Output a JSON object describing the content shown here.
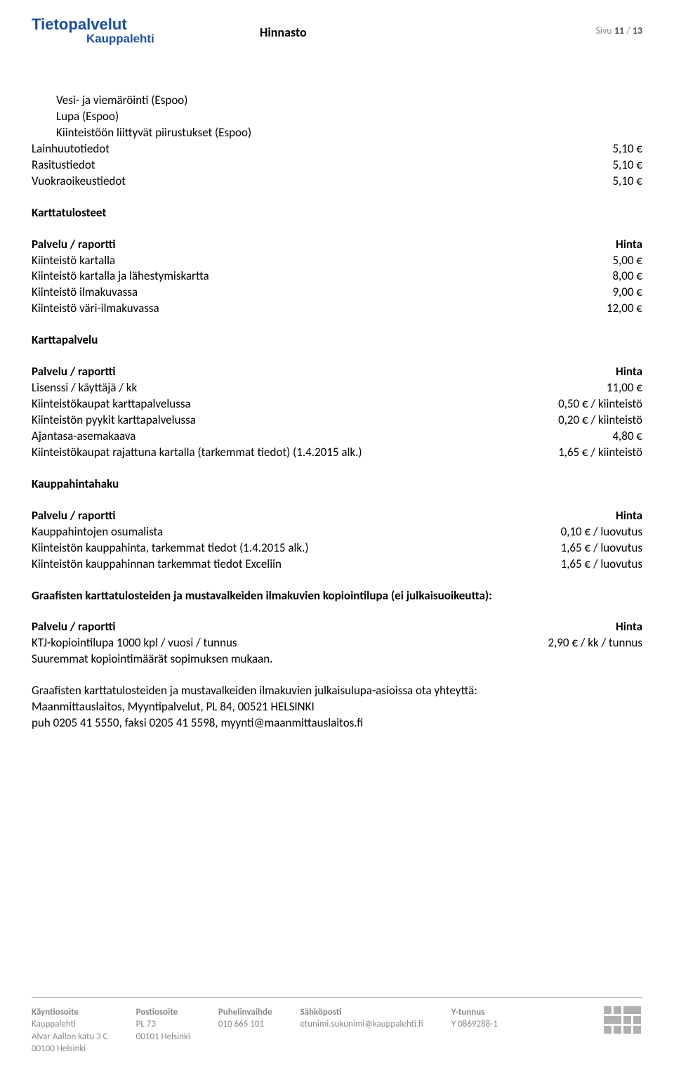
{
  "header": {
    "logo_main": "Tietopalvelut",
    "logo_sub": "Kauppalehti",
    "title": "Hinnasto",
    "page_word": "Sivu",
    "page_current": "11",
    "page_sep": "/",
    "page_total": "13",
    "logo_fill_main": "#1a4e9b",
    "logo_fill_sub": "#1a4e9b"
  },
  "intro_items": [
    "Vesi- ja viemäröinti (Espoo)",
    "Lupa (Espoo)",
    "Kiinteistöön liittyvät piirustukset (Espoo)"
  ],
  "intro_rows": [
    {
      "label": "Lainhuutotiedot",
      "value": "5,10 €"
    },
    {
      "label": "Rasitustiedot",
      "value": "5,10 €"
    },
    {
      "label": "Vuokraoikeustiedot",
      "value": "5,10 €"
    }
  ],
  "sections": [
    {
      "title": "Karttatulosteet",
      "header_label": "Palvelu / raportti",
      "header_value": "Hinta",
      "rows": [
        {
          "label": "Kiinteistö kartalla",
          "value": "5,00 €"
        },
        {
          "label": "Kiinteistö kartalla ja lähestymiskartta",
          "value": "8,00 €"
        },
        {
          "label": "Kiinteistö ilmakuvassa",
          "value": "9,00 €"
        },
        {
          "label": "Kiinteistö väri-ilmakuvassa",
          "value": "12,00 €"
        }
      ]
    },
    {
      "title": "Karttapalvelu",
      "header_label": "Palvelu / raportti",
      "header_value": "Hinta",
      "rows": [
        {
          "label": "Lisenssi / käyttäjä / kk",
          "value": "11,00 €"
        },
        {
          "label": "Kiinteistökaupat karttapalvelussa",
          "value": "0,50 € / kiinteistö"
        },
        {
          "label": "Kiinteistön pyykit karttapalvelussa",
          "value": "0,20 € / kiinteistö"
        },
        {
          "label": "Ajantasa-asemakaava",
          "value": "4,80 €"
        },
        {
          "label": "Kiinteistökaupat rajattuna kartalla (tarkemmat tiedot) (1.4.2015 alk.)",
          "value": "1,65 € / kiinteistö"
        }
      ]
    },
    {
      "title": "Kauppahintahaku",
      "header_label": "Palvelu / raportti",
      "header_value": "Hinta",
      "rows": [
        {
          "label": "Kauppahintojen osumalista",
          "value": "0,10 € / luovutus"
        },
        {
          "label": "Kiinteistön kauppahinta, tarkemmat tiedot (1.4.2015 alk.)",
          "value": "1,65 € / luovutus"
        },
        {
          "label": "Kiinteistön kauppahinnan tarkemmat tiedot Exceliin",
          "value": "1,65 € / luovutus"
        }
      ]
    },
    {
      "title": "Graafisten karttatulosteiden ja mustavalkeiden ilmakuvien kopiointilupa (ei julkaisuoikeutta):",
      "header_label": "Palvelu / raportti",
      "header_value": "Hinta",
      "rows": [
        {
          "label": "KTJ-kopiointilupa 1000 kpl / vuosi / tunnus",
          "value": "2,90 € / kk / tunnus"
        },
        {
          "label": "Suuremmat kopiointimäärät sopimuksen mukaan.",
          "value": ""
        }
      ]
    }
  ],
  "body_paragraph": [
    "Graafisten karttatulosteiden ja mustavalkeiden ilmakuvien julkaisulupa-asioissa ota yhteyttä:",
    "Maanmittauslaitos, Myyntipalvelut, PL 84, 00521 HELSINKI",
    "puh 0205 41 5550, faksi 0205 41 5598, myynti@maanmittauslaitos.fi"
  ],
  "footer": {
    "cols": [
      {
        "h": "Käyntiosoite",
        "lines": [
          "Kauppalehti",
          "Alvar Aallon katu 3 C",
          "00100 Helsinki"
        ]
      },
      {
        "h": "Postiosoite",
        "lines": [
          "PL 73",
          "00101 Helsinki"
        ]
      },
      {
        "h": "Puhelinvaihde",
        "lines": [
          "010 665 101"
        ]
      },
      {
        "h": "Sähköposti",
        "lines": [
          "etunimi.sukunimi@kauppalehti.fi"
        ]
      },
      {
        "h": "Y-tunnus",
        "lines": [
          "Y 0869288-1"
        ]
      }
    ],
    "logo_fill": "#b0b0b0"
  }
}
